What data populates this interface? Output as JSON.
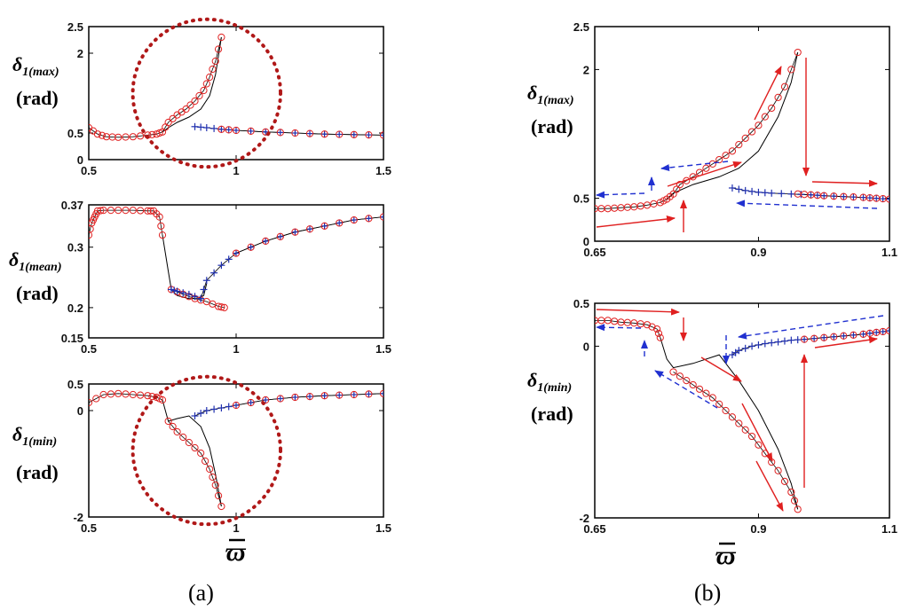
{
  "chart_data": [
    {
      "id": "a1",
      "type": "line",
      "ylabel": "δ",
      "ylabel_sub": "1(max)",
      "unit": "(rad)",
      "xlim": [
        0.5,
        1.5
      ],
      "ylim": [
        0,
        2.5
      ],
      "xticks": [
        {
          "v": 0.5,
          "t": "0.5"
        },
        {
          "v": 1,
          "t": "1"
        },
        {
          "v": 1.5,
          "t": "1.5"
        }
      ],
      "yticks": [
        {
          "v": 0,
          "t": "0"
        },
        {
          "v": 0.5,
          "t": "0.5"
        },
        {
          "v": 2,
          "t": "2"
        },
        {
          "v": 2.5,
          "t": "2.5"
        }
      ],
      "series": [
        {
          "name": "stable-upper",
          "style": "circle",
          "x": [
            0.5,
            0.53,
            0.56,
            0.6,
            0.65,
            0.7,
            0.73,
            0.75,
            0.77,
            0.8,
            0.83,
            0.86,
            0.89,
            0.91,
            0.93,
            0.95
          ],
          "y": [
            0.6,
            0.48,
            0.43,
            0.42,
            0.43,
            0.46,
            0.48,
            0.52,
            0.7,
            0.84,
            0.95,
            1.1,
            1.3,
            1.55,
            1.85,
            2.3
          ]
        },
        {
          "name": "unstable",
          "style": "line",
          "x": [
            0.75,
            0.77,
            0.8,
            0.84,
            0.88,
            0.91,
            0.93,
            0.95
          ],
          "y": [
            0.52,
            0.6,
            0.7,
            0.8,
            0.95,
            1.2,
            1.6,
            2.3
          ]
        },
        {
          "name": "stable-lower",
          "style": "plus",
          "x": [
            0.86,
            0.9,
            0.95,
            1.0,
            1.1,
            1.2,
            1.3,
            1.4,
            1.5
          ],
          "y": [
            0.62,
            0.6,
            0.57,
            0.55,
            0.52,
            0.5,
            0.48,
            0.47,
            0.46
          ]
        },
        {
          "name": "stable-lower-circle",
          "style": "circle",
          "x": [
            0.95,
            1.0,
            1.1,
            1.2,
            1.3,
            1.4,
            1.5
          ],
          "y": [
            0.57,
            0.55,
            0.52,
            0.5,
            0.48,
            0.47,
            0.46
          ]
        }
      ],
      "annotations": [
        {
          "type": "dotted-circle",
          "cx": 0.9,
          "cy": 1.25,
          "r": 0.16
        }
      ]
    },
    {
      "id": "a2",
      "type": "line",
      "ylabel": "δ",
      "ylabel_sub": "1(mean)",
      "unit": "(rad)",
      "xlim": [
        0.5,
        1.5
      ],
      "ylim": [
        0.15,
        0.37
      ],
      "xticks": [
        {
          "v": 0.5,
          "t": "0.5"
        },
        {
          "v": 1,
          "t": "1"
        },
        {
          "v": 1.5,
          "t": "1.5"
        }
      ],
      "yticks": [
        {
          "v": 0.15,
          "t": "0.15"
        },
        {
          "v": 0.2,
          "t": "0.2"
        },
        {
          "v": 0.3,
          "t": "0.3"
        },
        {
          "v": 0.37,
          "t": "0.37"
        }
      ],
      "series": [
        {
          "name": "stable-upper",
          "style": "circle",
          "x": [
            0.5,
            0.51,
            0.52,
            0.53,
            0.55,
            0.6,
            0.65,
            0.7,
            0.72,
            0.74,
            0.75
          ],
          "y": [
            0.32,
            0.34,
            0.35,
            0.36,
            0.361,
            0.361,
            0.361,
            0.36,
            0.36,
            0.35,
            0.32
          ]
        },
        {
          "name": "unstable",
          "style": "line",
          "x": [
            0.75,
            0.76,
            0.77,
            0.78,
            0.8,
            0.84,
            0.87,
            0.89,
            0.9
          ],
          "y": [
            0.32,
            0.29,
            0.26,
            0.23,
            0.22,
            0.215,
            0.215,
            0.22,
            0.24
          ]
        },
        {
          "name": "stable-mid",
          "style": "circle",
          "x": [
            0.78,
            0.82,
            0.86,
            0.9,
            0.94,
            0.96
          ],
          "y": [
            0.23,
            0.222,
            0.215,
            0.21,
            0.202,
            0.2
          ]
        },
        {
          "name": "stable-lower",
          "style": "plus",
          "x": [
            0.78,
            0.8,
            0.84,
            0.88
          ],
          "y": [
            0.23,
            0.227,
            0.222,
            0.215
          ]
        },
        {
          "name": "stable-right",
          "style": "plus",
          "x": [
            0.88,
            0.9,
            0.95,
            1.0,
            1.1,
            1.2,
            1.3,
            1.4,
            1.5
          ],
          "y": [
            0.215,
            0.245,
            0.27,
            0.29,
            0.31,
            0.325,
            0.335,
            0.345,
            0.35
          ]
        },
        {
          "name": "stable-right-circle",
          "style": "circle",
          "x": [
            1.0,
            1.1,
            1.2,
            1.3,
            1.4,
            1.5
          ],
          "y": [
            0.29,
            0.31,
            0.325,
            0.335,
            0.345,
            0.35
          ]
        }
      ]
    },
    {
      "id": "a3",
      "type": "line",
      "ylabel": "δ",
      "ylabel_sub": "1(min)",
      "unit": "(rad)",
      "xlim": [
        0.5,
        1.5
      ],
      "ylim": [
        -2,
        0.5
      ],
      "xticks": [
        {
          "v": 0.5,
          "t": "0.5"
        },
        {
          "v": 1,
          "t": "1"
        },
        {
          "v": 1.5,
          "t": "1.5"
        }
      ],
      "yticks": [
        {
          "v": -2,
          "t": "-2"
        },
        {
          "v": 0,
          "t": "0"
        },
        {
          "v": 0.5,
          "t": "0.5"
        }
      ],
      "series": [
        {
          "name": "stable-upper",
          "style": "circle",
          "x": [
            0.5,
            0.55,
            0.6,
            0.65,
            0.7,
            0.73,
            0.75
          ],
          "y": [
            0.15,
            0.3,
            0.32,
            0.3,
            0.28,
            0.25,
            0.2
          ]
        },
        {
          "name": "stable-lower",
          "style": "circle",
          "x": [
            0.77,
            0.8,
            0.84,
            0.88,
            0.91,
            0.93,
            0.95
          ],
          "y": [
            -0.2,
            -0.4,
            -0.6,
            -0.8,
            -1.1,
            -1.4,
            -1.8
          ]
        },
        {
          "name": "unstable",
          "style": "line",
          "x": [
            0.75,
            0.77,
            0.8,
            0.84,
            0.88,
            0.91,
            0.93,
            0.95
          ],
          "y": [
            0.2,
            -0.2,
            -0.15,
            -0.1,
            -0.3,
            -0.7,
            -1.2,
            -1.8
          ]
        },
        {
          "name": "stable-right",
          "style": "plus",
          "x": [
            0.86,
            0.9,
            0.95,
            1.0,
            1.1,
            1.2,
            1.3,
            1.4,
            1.5
          ],
          "y": [
            -0.1,
            0.0,
            0.05,
            0.1,
            0.2,
            0.25,
            0.28,
            0.3,
            0.32
          ]
        },
        {
          "name": "stable-right-circle",
          "style": "circle",
          "x": [
            1.0,
            1.1,
            1.2,
            1.3,
            1.4,
            1.5
          ],
          "y": [
            0.1,
            0.2,
            0.25,
            0.28,
            0.3,
            0.32
          ]
        }
      ],
      "annotations": [
        {
          "type": "dotted-circle",
          "cx": 0.9,
          "cy": -0.75,
          "r": 0.16
        }
      ]
    },
    {
      "id": "b1",
      "type": "line",
      "ylabel": "δ",
      "ylabel_sub": "1(max)",
      "unit": "(rad)",
      "xlim": [
        0.65,
        1.1
      ],
      "ylim": [
        0,
        2.5
      ],
      "xticks": [
        {
          "v": 0.65,
          "t": "0.65"
        },
        {
          "v": 0.9,
          "t": "0.9"
        },
        {
          "v": 1.1,
          "t": "1.1"
        }
      ],
      "yticks": [
        {
          "v": 0,
          "t": "0"
        },
        {
          "v": 0.5,
          "t": "0.5"
        },
        {
          "v": 2,
          "t": "2"
        },
        {
          "v": 2.5,
          "t": "2.5"
        }
      ],
      "series": [
        {
          "name": "stable-upper",
          "style": "circle",
          "x": [
            0.65,
            0.67,
            0.69,
            0.71,
            0.73,
            0.75,
            0.76,
            0.77,
            0.78,
            0.8,
            0.82,
            0.84,
            0.86,
            0.88,
            0.9,
            0.92,
            0.94,
            0.96
          ],
          "y": [
            0.38,
            0.38,
            0.39,
            0.4,
            0.42,
            0.45,
            0.49,
            0.55,
            0.66,
            0.75,
            0.85,
            0.95,
            1.05,
            1.2,
            1.35,
            1.55,
            1.8,
            2.2
          ]
        },
        {
          "name": "unstable",
          "style": "line",
          "x": [
            0.76,
            0.77,
            0.8,
            0.84,
            0.87,
            0.9,
            0.93,
            0.95,
            0.96
          ],
          "y": [
            0.49,
            0.56,
            0.66,
            0.75,
            0.85,
            1.05,
            1.45,
            1.85,
            2.2
          ]
        },
        {
          "name": "stable-lower",
          "style": "plus",
          "x": [
            0.86,
            0.88,
            0.9,
            0.92,
            0.95,
            0.98,
            1.0,
            1.03,
            1.06,
            1.08,
            1.1
          ],
          "y": [
            0.62,
            0.59,
            0.57,
            0.56,
            0.55,
            0.54,
            0.53,
            0.52,
            0.51,
            0.5,
            0.49
          ]
        },
        {
          "name": "stable-lower-circle",
          "style": "circle",
          "x": [
            0.96,
            0.98,
            1.0,
            1.03,
            1.06,
            1.08,
            1.1
          ],
          "y": [
            0.55,
            0.54,
            0.53,
            0.52,
            0.51,
            0.5,
            0.49
          ]
        }
      ]
    },
    {
      "id": "b2",
      "type": "line",
      "ylabel": "δ",
      "ylabel_sub": "1(min)",
      "unit": "(rad)",
      "xlim": [
        0.65,
        1.1
      ],
      "ylim": [
        -2,
        0.5
      ],
      "xticks": [
        {
          "v": 0.65,
          "t": "0.65"
        },
        {
          "v": 0.9,
          "t": "0.9"
        },
        {
          "v": 1.1,
          "t": "1.1"
        }
      ],
      "yticks": [
        {
          "v": -2,
          "t": "-2"
        },
        {
          "v": 0,
          "t": "0"
        },
        {
          "v": 0.5,
          "t": "0.5"
        }
      ],
      "series": [
        {
          "name": "stable-upper",
          "style": "circle",
          "x": [
            0.65,
            0.67,
            0.69,
            0.71,
            0.73,
            0.745,
            0.75
          ],
          "y": [
            0.3,
            0.3,
            0.28,
            0.27,
            0.25,
            0.2,
            0.1
          ]
        },
        {
          "name": "stable-lower",
          "style": "circle",
          "x": [
            0.77,
            0.79,
            0.81,
            0.83,
            0.85,
            0.87,
            0.89,
            0.91,
            0.93,
            0.95,
            0.96
          ],
          "y": [
            -0.3,
            -0.4,
            -0.5,
            -0.6,
            -0.75,
            -0.9,
            -1.05,
            -1.25,
            -1.45,
            -1.7,
            -1.9
          ]
        },
        {
          "name": "unstable",
          "style": "line",
          "x": [
            0.75,
            0.76,
            0.77,
            0.8,
            0.84,
            0.87,
            0.9,
            0.93,
            0.95,
            0.96
          ],
          "y": [
            0.1,
            -0.15,
            -0.25,
            -0.2,
            -0.1,
            -0.4,
            -0.75,
            -1.2,
            -1.6,
            -1.9
          ]
        },
        {
          "name": "stable-right",
          "style": "plus",
          "x": [
            0.86,
            0.87,
            0.89,
            0.91,
            0.93,
            0.95,
            0.97,
            1.0,
            1.03,
            1.06,
            1.08,
            1.1
          ],
          "y": [
            -0.1,
            -0.05,
            0.0,
            0.03,
            0.05,
            0.07,
            0.08,
            0.1,
            0.12,
            0.14,
            0.16,
            0.18
          ]
        },
        {
          "name": "stable-right-circle",
          "style": "circle",
          "x": [
            0.97,
            1.0,
            1.03,
            1.06,
            1.08,
            1.1
          ],
          "y": [
            0.08,
            0.1,
            0.12,
            0.14,
            0.16,
            0.18
          ]
        }
      ]
    }
  ],
  "labels": {
    "xlabel": "ϖ",
    "caption_a": "(a)",
    "caption_b": "(b)"
  },
  "colors": {
    "circle": "#e02020",
    "plus": "#2030b0",
    "line": "#000000",
    "dotted": "#b01818",
    "arrow_red": "#e02020",
    "arrow_blue": "#2030d0"
  }
}
